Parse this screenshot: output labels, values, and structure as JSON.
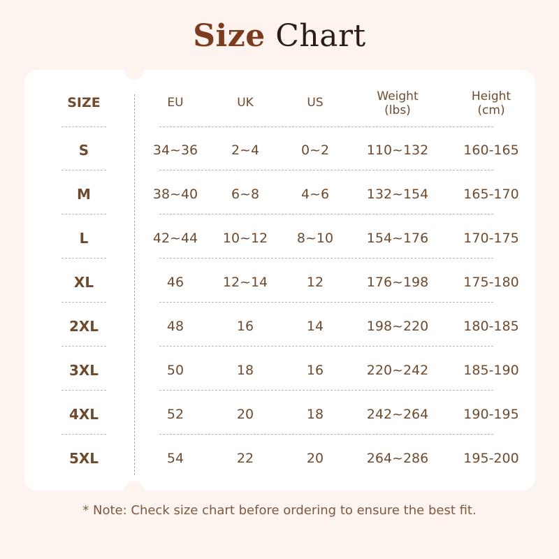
{
  "title": {
    "part1": "Size",
    "part2": "Chart"
  },
  "table": {
    "headers": [
      "SIZE",
      "EU",
      "UK",
      "US",
      "Weight\n(lbs)",
      "Height\n(cm)"
    ],
    "rows": [
      [
        "S",
        "34~36",
        "2~4",
        "0~2",
        "110~132",
        "160-165"
      ],
      [
        "M",
        "38~40",
        "6~8",
        "4~6",
        "132~154",
        "165-170"
      ],
      [
        "L",
        "42~44",
        "10~12",
        "8~10",
        "154~176",
        "170-175"
      ],
      [
        "XL",
        "46",
        "12~14",
        "12",
        "176~198",
        "175-180"
      ],
      [
        "2XL",
        "48",
        "16",
        "14",
        "198~220",
        "180-185"
      ],
      [
        "3XL",
        "50",
        "18",
        "16",
        "220~242",
        "185-190"
      ],
      [
        "4XL",
        "52",
        "20",
        "18",
        "242~264",
        "190-195"
      ],
      [
        "5XL",
        "54",
        "22",
        "20",
        "264~286",
        "195-200"
      ]
    ]
  },
  "note": "* Note: Check size chart before ordering to ensure the best fit.",
  "colors": {
    "background": "#fdf3ef",
    "card": "#ffffff",
    "text": "#6e4b2f",
    "title_accent": "#7b3b1f",
    "title_dark": "#2b1c16"
  }
}
